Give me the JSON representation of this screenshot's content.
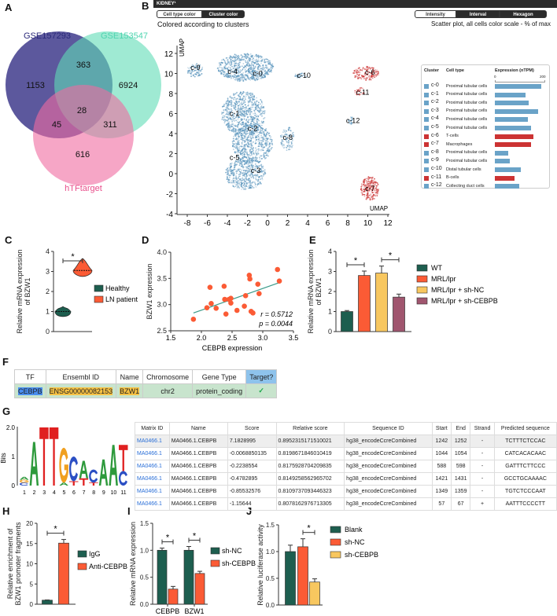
{
  "panel_labels": {
    "A": "A",
    "B": "B",
    "C": "C",
    "D": "D",
    "E": "E",
    "F": "F",
    "G": "G",
    "H": "H",
    "I": "I",
    "J": "J"
  },
  "colors": {
    "dark_green": "#1d5e4f",
    "orange": "#fb5b35",
    "yellow": "#f8c75f",
    "mauve": "#a0566f",
    "umap_blue": "#6a9fc2",
    "umap_red": "#cc3333"
  },
  "venn": {
    "sets": [
      {
        "name": "GSE157293",
        "color": "#3f3b8c"
      },
      {
        "name": "GSE153547",
        "color": "#5fdcb6"
      },
      {
        "name": "hTFtarget",
        "color": "#f06aa0"
      }
    ],
    "regions": {
      "only_157293": "1153",
      "157293_153547": "363",
      "only_153547": "6924",
      "all_three": "28",
      "157293_htf": "45",
      "153547_htf": "311",
      "only_htf": "616"
    }
  },
  "panel_b": {
    "header": "KIDNEY¹",
    "color_toggle": [
      "Cell type color",
      "Cluster color"
    ],
    "mode_toggle": [
      "Intensity",
      "Interval",
      "Hexagon"
    ],
    "caption_left": "Colored according to clusters",
    "caption_right": "Scatter plot, all cells color scale - % of max",
    "legend_headers": {
      "cluster": "Cluster",
      "cell_type": "Cell type",
      "expression": "Expression (nTPM)",
      "scale_min": "0",
      "scale_max": "200"
    },
    "legend_rows": [
      {
        "id": "c-0",
        "type": "Proximal tubular cells",
        "expr": 190,
        "color": "#6aa3c8"
      },
      {
        "id": "c-1",
        "type": "Proximal tubular cells",
        "expr": 125,
        "color": "#6aa3c8"
      },
      {
        "id": "c-2",
        "type": "Proximal tubular cells",
        "expr": 138,
        "color": "#6aa3c8"
      },
      {
        "id": "c-3",
        "type": "Proximal tubular cells",
        "expr": 178,
        "color": "#6aa3c8"
      },
      {
        "id": "c-4",
        "type": "Proximal tubular cells",
        "expr": 134,
        "color": "#6aa3c8"
      },
      {
        "id": "c-5",
        "type": "Proximal tubular cells",
        "expr": 148,
        "color": "#6aa3c8"
      },
      {
        "id": "c-6",
        "type": "T-cells",
        "expr": 158,
        "color": "#cc3333"
      },
      {
        "id": "c-7",
        "type": "Macrophages",
        "expr": 147,
        "color": "#cc3333"
      },
      {
        "id": "c-8",
        "type": "Proximal tubular cells",
        "expr": 56,
        "color": "#6aa3c8"
      },
      {
        "id": "c-9",
        "type": "Proximal tubular cells",
        "expr": 60,
        "color": "#6aa3c8"
      },
      {
        "id": "c-10",
        "type": "Distal tubular cells",
        "expr": 105,
        "color": "#6aa3c8"
      },
      {
        "id": "c-11",
        "type": "B-cells",
        "expr": 82,
        "color": "#cc3333"
      },
      {
        "id": "c-12",
        "type": "Collecting duct cells",
        "expr": 99,
        "color": "#6aa3c8"
      }
    ]
  },
  "chart_data": [
    {
      "id": "B",
      "type": "scatter",
      "title": "UMAP",
      "xlabel": "UMAP",
      "ylabel": "UMAP",
      "xlim": [
        -9,
        12
      ],
      "ylim": [
        -4,
        12
      ],
      "xticks": [
        -8,
        -6,
        -4,
        -2,
        0,
        2,
        4,
        6,
        8,
        10,
        12
      ],
      "yticks": [
        -4,
        -2,
        0,
        2,
        4,
        6,
        8,
        10,
        12
      ],
      "clusters": [
        {
          "label": "c-0",
          "x": -1,
          "y": 10,
          "group": "blue"
        },
        {
          "label": "c-1",
          "x": -3.3,
          "y": 6,
          "group": "blue"
        },
        {
          "label": "c-2",
          "x": -1.5,
          "y": 4.5,
          "group": "blue"
        },
        {
          "label": "c-3",
          "x": -1.2,
          "y": 0.3,
          "group": "blue"
        },
        {
          "label": "c-4",
          "x": -3.5,
          "y": 10.2,
          "group": "blue"
        },
        {
          "label": "c-5",
          "x": -3.3,
          "y": 1.6,
          "group": "blue"
        },
        {
          "label": "c-6",
          "x": 10.2,
          "y": 10.1,
          "group": "red"
        },
        {
          "label": "c-7",
          "x": 10.2,
          "y": -1.5,
          "group": "red"
        },
        {
          "label": "c-8",
          "x": 2,
          "y": 3.6,
          "group": "blue"
        },
        {
          "label": "c-9",
          "x": -7.2,
          "y": 10.6,
          "group": "blue"
        },
        {
          "label": "c-10",
          "x": 3.4,
          "y": 9.8,
          "group": "blue"
        },
        {
          "label": "c-11",
          "x": 9.3,
          "y": 8.1,
          "group": "red"
        },
        {
          "label": "c-12",
          "x": 8.3,
          "y": 5.3,
          "group": "blue"
        }
      ]
    },
    {
      "id": "C",
      "type": "violin",
      "ylabel": "Relative mRNA expression of BZW1",
      "ylim": [
        0,
        4
      ],
      "yticks": [
        "0",
        "1",
        "2",
        "3",
        "4"
      ],
      "series": [
        {
          "name": "Healthy",
          "median": 1.0,
          "min": 0.75,
          "max": 1.25,
          "color": "#1d5e4f"
        },
        {
          "name": "LN patient",
          "median": 3.05,
          "min": 2.75,
          "max": 3.65,
          "color": "#fb5b35"
        }
      ],
      "significance": [
        {
          "between": [
            0,
            1
          ],
          "label": "*"
        }
      ]
    },
    {
      "id": "D",
      "type": "scatter",
      "xlabel": "CEBPB expression",
      "ylabel": "BZW1 expression",
      "xlim": [
        1.5,
        3.5
      ],
      "ylim": [
        2.5,
        4.0
      ],
      "xticks": [
        "1.5",
        "2.0",
        "2.5",
        "3.0",
        "3.5"
      ],
      "yticks": [
        "2.5",
        "3.0",
        "3.5",
        "4.0"
      ],
      "points": [
        [
          1.87,
          2.72
        ],
        [
          2.09,
          2.94
        ],
        [
          2.14,
          3.33
        ],
        [
          2.16,
          3.02
        ],
        [
          2.24,
          2.93
        ],
        [
          2.37,
          3.35
        ],
        [
          2.38,
          3.1
        ],
        [
          2.4,
          2.82
        ],
        [
          2.45,
          3.1
        ],
        [
          2.48,
          3.12
        ],
        [
          2.48,
          3.03
        ],
        [
          2.58,
          2.89
        ],
        [
          2.7,
          2.97
        ],
        [
          2.72,
          3.17
        ],
        [
          2.78,
          3.56
        ],
        [
          2.79,
          3.49
        ],
        [
          2.81,
          2.87
        ],
        [
          2.84,
          2.84
        ],
        [
          2.92,
          3.39
        ],
        [
          2.94,
          3.21
        ],
        [
          3.24,
          3.67
        ],
        [
          3.27,
          3.45
        ]
      ],
      "fit": [
        [
          1.87,
          2.84
        ],
        [
          3.27,
          3.42
        ]
      ],
      "color": "#fb5b35",
      "fit_color": "#3a9a88",
      "annotations": [
        "r = 0.5712",
        "p = 0.0044"
      ]
    },
    {
      "id": "E",
      "type": "bar",
      "ylabel": "Relative mRNA expression of BZW1",
      "ylim": [
        0,
        4
      ],
      "yticks": [
        "0",
        "1",
        "2",
        "3",
        "4"
      ],
      "categories": [
        "WT",
        "MRL/lpr",
        "MRL/lpr + sh-NC",
        "MRL/lpr + sh-CEBPB"
      ],
      "values": [
        1.0,
        2.8,
        2.92,
        1.72
      ],
      "errors": [
        0.05,
        0.22,
        0.35,
        0.15
      ],
      "colors": [
        "#1d5e4f",
        "#fb5b35",
        "#f8c75f",
        "#a0566f"
      ],
      "significance": [
        {
          "between": [
            0,
            1
          ],
          "label": "*"
        },
        {
          "between": [
            2,
            3
          ],
          "label": "*"
        }
      ]
    },
    {
      "id": "H",
      "type": "bar",
      "ylabel": "Relative enrichment of BZW1 promoter fragments",
      "ylim": [
        0,
        20
      ],
      "yticks": [
        "0",
        "5",
        "10",
        "15",
        "20"
      ],
      "categories": [
        "IgG",
        "Anti-CEBPB"
      ],
      "values": [
        1.0,
        15.1
      ],
      "errors": [
        0.05,
        0.9
      ],
      "colors": [
        "#1d5e4f",
        "#fb5b35"
      ],
      "significance": [
        {
          "between": [
            0,
            1
          ],
          "label": "*"
        }
      ]
    },
    {
      "id": "I",
      "type": "grouped_bar",
      "ylabel": "Relative mRNA expression",
      "ylim": [
        0,
        1.5
      ],
      "yticks": [
        "0.0",
        "0.5",
        "1.0",
        "1.5"
      ],
      "categories": [
        "CEBPB",
        "BZW1"
      ],
      "series": [
        {
          "name": "sh-NC",
          "values": [
            1.0,
            1.0
          ],
          "errors": [
            0.04,
            0.07
          ],
          "color": "#1d5e4f"
        },
        {
          "name": "sh-CEBPB",
          "values": [
            0.28,
            0.57
          ],
          "errors": [
            0.05,
            0.04
          ],
          "color": "#fb5b35"
        }
      ],
      "significance": [
        {
          "group": 0,
          "label": "*"
        },
        {
          "group": 1,
          "label": "*"
        }
      ]
    },
    {
      "id": "J",
      "type": "bar",
      "ylabel": "Relative luciferase activity",
      "ylim": [
        0,
        1.5
      ],
      "yticks": [
        "0.0",
        "0.5",
        "1.0",
        "1.5"
      ],
      "categories": [
        "Blank",
        "sh-NC",
        "sh-CEBPB"
      ],
      "values": [
        1.0,
        1.09,
        0.43
      ],
      "errors": [
        0.12,
        0.15,
        0.06
      ],
      "colors": [
        "#1d5e4f",
        "#fb5b35",
        "#f8c75f"
      ],
      "significance": [
        {
          "between": [
            1,
            2
          ],
          "label": "*"
        }
      ]
    }
  ],
  "table_f": {
    "headers": [
      "TF",
      "Ensembl ID",
      "Name",
      "Chromosome",
      "Gene Type",
      "Target?"
    ],
    "row": [
      "CEBPB",
      "ENSG00000082153",
      "BZW1",
      "chr2",
      "protein_coding",
      "✓"
    ]
  },
  "logo_g": {
    "ylabel": "Bits",
    "yticks": [
      "0",
      "1",
      "2.0"
    ],
    "positions": [
      "1",
      "2",
      "3",
      "4",
      "5",
      "6",
      "7",
      "8",
      "9",
      "10",
      "11"
    ],
    "consensus": [
      [
        [
          "A",
          0.1
        ],
        [
          "G",
          0.1
        ],
        [
          "C",
          0.1
        ]
      ],
      [
        [
          "A",
          1.5
        ]
      ],
      [
        [
          "T",
          2.0
        ]
      ],
      [
        [
          "T",
          2.0
        ]
      ],
      [
        [
          "G",
          1.2
        ],
        [
          "A",
          0.1
        ]
      ],
      [
        [
          "C",
          0.85
        ],
        [
          "T",
          0.15
        ]
      ],
      [
        [
          "A",
          0.6
        ],
        [
          "T",
          0.25
        ]
      ],
      [
        [
          "C",
          0.45
        ],
        [
          "T",
          0.1
        ]
      ],
      [
        [
          "A",
          0.9
        ]
      ],
      [
        [
          "A",
          1.4
        ]
      ],
      [
        [
          "T",
          0.9
        ],
        [
          "C",
          0.5
        ]
      ]
    ]
  },
  "table_g": {
    "headers": [
      "Matrix ID",
      "Name",
      "Score",
      "Relative score",
      "Sequence ID",
      "Start",
      "End",
      "Strand",
      "Predicted sequence"
    ],
    "rows": [
      [
        "MA0466.1",
        "MA0466.1.CEBPB",
        "7.1828995",
        "0.8952315171510021",
        "hg38_encodeCcreCombined",
        "1242",
        "1252",
        "-",
        "TCTTTCTCCAC"
      ],
      [
        "MA0466.1",
        "MA0466.1.CEBPB",
        "-0.0068850135",
        "0.8198671846010419",
        "hg38_encodeCcreCombined",
        "1044",
        "1054",
        "-",
        "CATCACACAAC"
      ],
      [
        "MA0466.1",
        "MA0466.1.CEBPB",
        "-0.2238554",
        "0.8175928704209835",
        "hg38_encodeCcreCombined",
        "588",
        "598",
        "-",
        "GATTTCTTCCC"
      ],
      [
        "MA0466.1",
        "MA0466.1.CEBPB",
        "-0.4782895",
        "0.8149258562965702",
        "hg38_encodeCcreCombined",
        "1421",
        "1431",
        "-",
        "GCCTGCAAAAC"
      ],
      [
        "MA0466.1",
        "MA0466.1.CEBPB",
        "-0.85532576",
        "0.8109737093446323",
        "hg38_encodeCcreCombined",
        "1349",
        "1359",
        "-",
        "TGTCTCCCAAT"
      ],
      [
        "MA0466.1",
        "MA0466.1.CEBPB",
        "-1.15644",
        "0.8078162976713305",
        "hg38_encodeCcreCombined",
        "57",
        "67",
        "+",
        "AATTTCCCCTT"
      ]
    ]
  }
}
